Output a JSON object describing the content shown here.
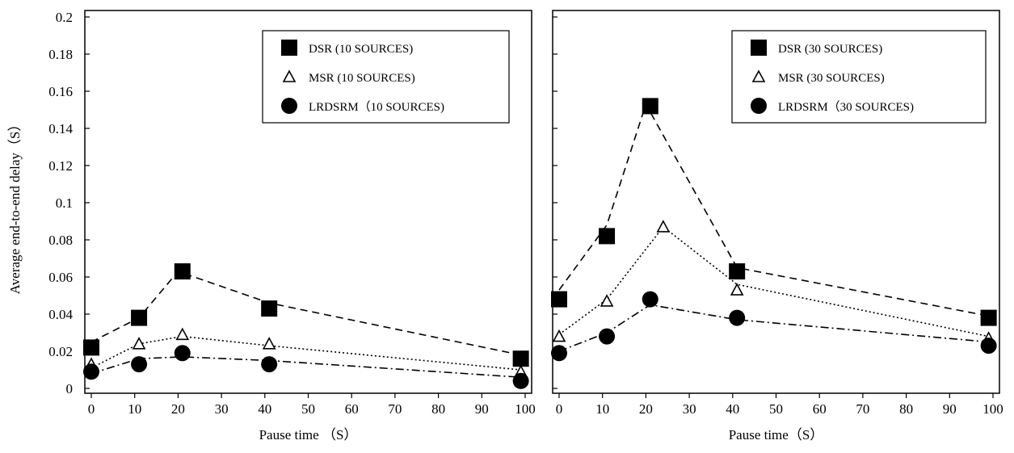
{
  "figure": {
    "shared_ylabel": "Average end-to-end delay（S）"
  },
  "chart_data": [
    {
      "type": "line",
      "xlabel": "Pause time （S）",
      "ylabel": "Average end-to-end delay（S）",
      "xlim": [
        0,
        100
      ],
      "ylim": [
        0,
        0.2
      ],
      "xticks": [
        0,
        10,
        20,
        30,
        40,
        50,
        60,
        70,
        80,
        90,
        100
      ],
      "xtick_labels": [
        "0",
        "10",
        "20",
        "30",
        "40",
        "50",
        "60",
        "70",
        "80",
        "90",
        "100"
      ],
      "yticks": [
        0,
        0.02,
        0.04,
        0.06,
        0.08,
        0.1,
        0.12,
        0.14,
        0.16,
        0.18,
        0.2
      ],
      "ytick_labels": [
        "0",
        "0.02",
        "0.04",
        "0.06",
        "0.08",
        "0.1",
        "0.12",
        "0.14",
        "0.16",
        "0.18",
        "0.2"
      ],
      "grid": false,
      "legend_position": "top-right",
      "series": [
        {
          "name": "DSR (10 SOURCES)",
          "marker": "square-filled",
          "line_style": "dashed",
          "color": "#000000",
          "points": [
            [
              0,
              0.022
            ],
            [
              11,
              0.038
            ],
            [
              21,
              0.063
            ],
            [
              41,
              0.043
            ],
            [
              99,
              0.016
            ]
          ],
          "line": [
            [
              0,
              0.025
            ],
            [
              11,
              0.038
            ],
            [
              20,
              0.063
            ],
            [
              41,
              0.046
            ],
            [
              99,
              0.018
            ]
          ]
        },
        {
          "name": "MSR (10 SOURCES)",
          "marker": "triangle-open",
          "line_style": "dotted",
          "color": "#000000",
          "points": [
            [
              0,
              0.013
            ],
            [
              11,
              0.024
            ],
            [
              21,
              0.029
            ],
            [
              41,
              0.024
            ],
            [
              99,
              0.009
            ]
          ],
          "line": [
            [
              0,
              0.011
            ],
            [
              11,
              0.024
            ],
            [
              21,
              0.028
            ],
            [
              41,
              0.023
            ],
            [
              99,
              0.01
            ]
          ]
        },
        {
          "name": "LRDSRM（10 SOURCES)",
          "marker": "circle-filled",
          "line_style": "dash-dot",
          "color": "#000000",
          "points": [
            [
              0,
              0.009
            ],
            [
              11,
              0.013
            ],
            [
              21,
              0.019
            ],
            [
              41,
              0.013
            ],
            [
              99,
              0.004
            ]
          ],
          "line": [
            [
              0,
              0.008
            ],
            [
              11,
              0.016
            ],
            [
              21,
              0.017
            ],
            [
              41,
              0.015
            ],
            [
              99,
              0.006
            ]
          ]
        }
      ]
    },
    {
      "type": "line",
      "xlabel": "Pause time（S）",
      "ylabel": "Average end-to-end delay（S）",
      "xlim": [
        0,
        100
      ],
      "ylim": [
        0,
        0.2
      ],
      "xticks": [
        0,
        10,
        20,
        30,
        40,
        50,
        60,
        70,
        80,
        90,
        100
      ],
      "xtick_labels": [
        "0",
        "10",
        "20",
        "30",
        "40",
        "50",
        "60",
        "70",
        "80",
        "90",
        "100"
      ],
      "yticks": [
        0,
        0.02,
        0.04,
        0.06,
        0.08,
        0.1,
        0.12,
        0.14,
        0.16,
        0.18,
        0.2
      ],
      "ytick_labels": [],
      "grid": false,
      "legend_position": "top-right",
      "series": [
        {
          "name": "DSR (30 SOURCES)",
          "marker": "square-filled",
          "line_style": "dashed",
          "color": "#000000",
          "points": [
            [
              0,
              0.048
            ],
            [
              11,
              0.082
            ],
            [
              21,
              0.152
            ],
            [
              41,
              0.063
            ],
            [
              99,
              0.038
            ]
          ],
          "line": [
            [
              0,
              0.053
            ],
            [
              11,
              0.088
            ],
            [
              20,
              0.153
            ],
            [
              41,
              0.065
            ],
            [
              99,
              0.039
            ]
          ]
        },
        {
          "name": "MSR (30 SOURCES)",
          "marker": "triangle-open",
          "line_style": "dotted",
          "color": "#000000",
          "points": [
            [
              0,
              0.028
            ],
            [
              11,
              0.047
            ],
            [
              24,
              0.087
            ],
            [
              41,
              0.053
            ],
            [
              99,
              0.027
            ]
          ],
          "line": [
            [
              0,
              0.029
            ],
            [
              11,
              0.048
            ],
            [
              24,
              0.087
            ],
            [
              41,
              0.056
            ],
            [
              99,
              0.028
            ]
          ]
        },
        {
          "name": "LRDSRM（30 SOURCES)",
          "marker": "circle-filled",
          "line_style": "dash-dot",
          "color": "#000000",
          "points": [
            [
              0,
              0.019
            ],
            [
              11,
              0.028
            ],
            [
              21,
              0.048
            ],
            [
              41,
              0.038
            ],
            [
              99,
              0.023
            ]
          ],
          "line": [
            [
              0,
              0.02
            ],
            [
              11,
              0.03
            ],
            [
              21,
              0.045
            ],
            [
              41,
              0.037
            ],
            [
              99,
              0.025
            ]
          ]
        }
      ]
    }
  ]
}
